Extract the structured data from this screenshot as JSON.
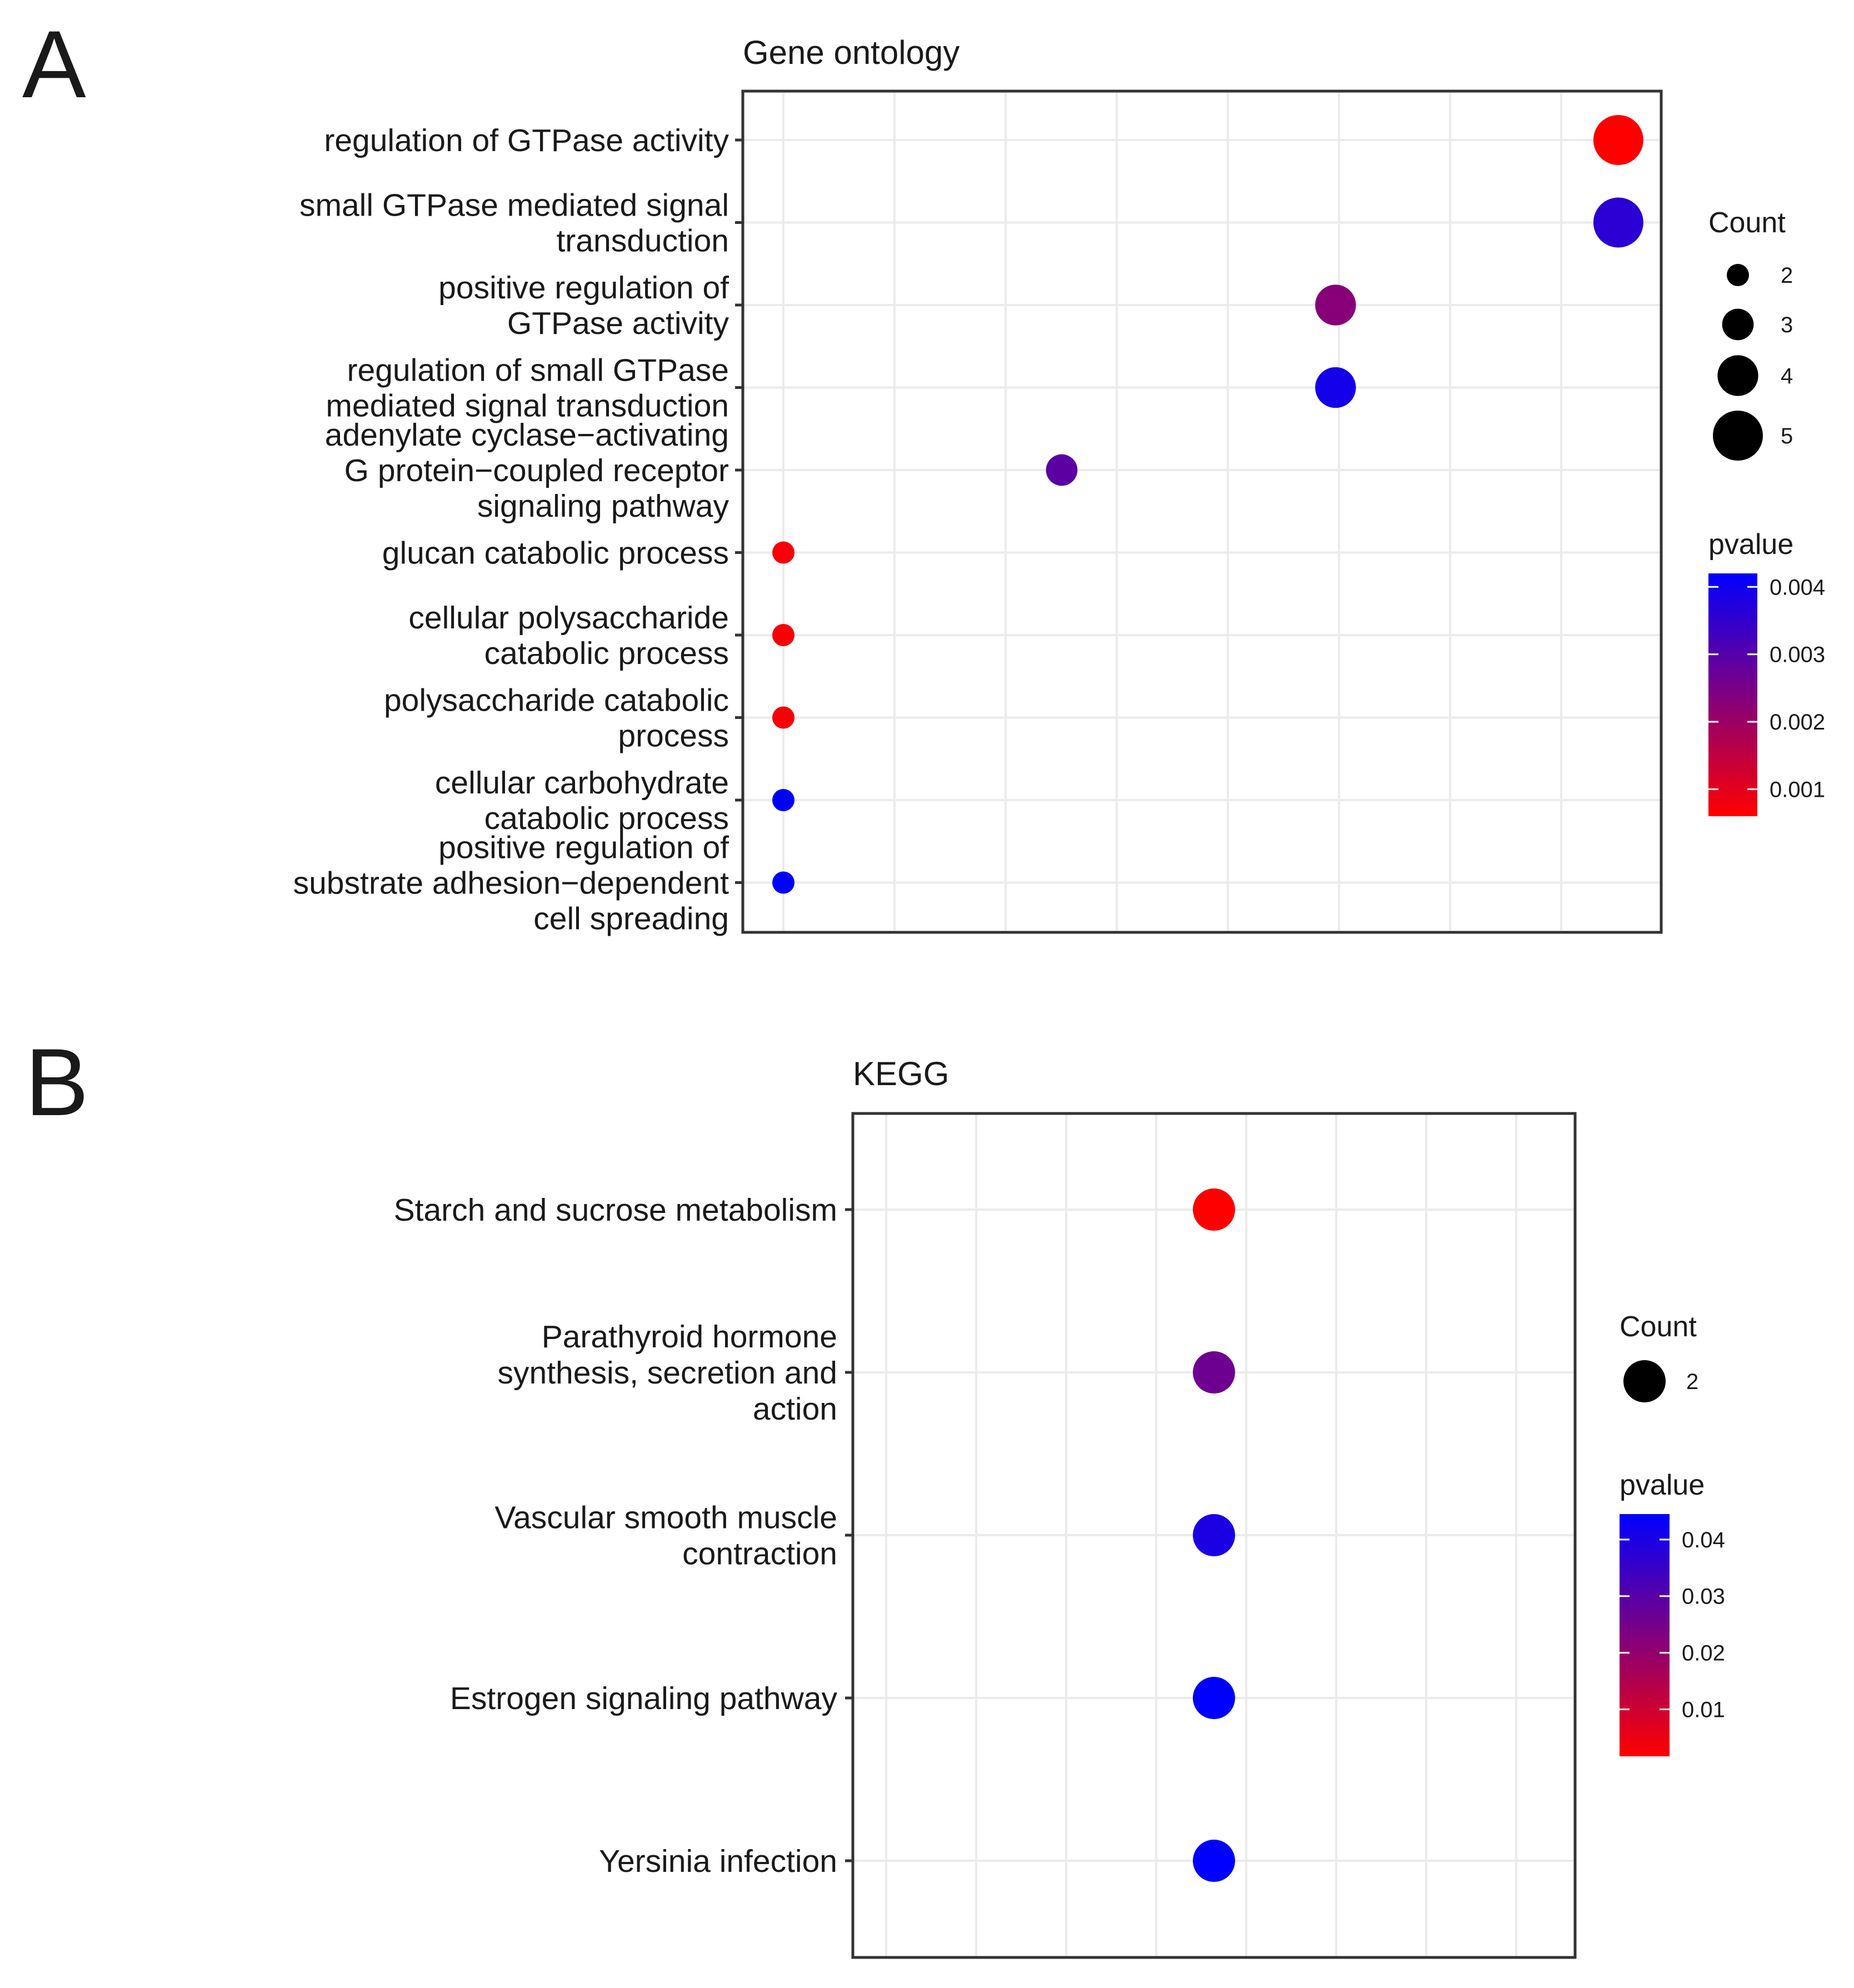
{
  "panel_a": {
    "letter": "A",
    "chart_data": {
      "type": "scatter",
      "title": "Gene ontology",
      "xlabel": "",
      "ylabel": "",
      "x_tick_labels": "none shown",
      "grid": true,
      "legend_placement": "right",
      "categories": [
        "regulation of GTPase activity",
        "small GTPase mediated signal transduction",
        "positive regulation of GTPase activity",
        "regulation of small GTPase mediated signal transduction",
        "adenylate cyclase−activating G protein−coupled receptor signaling pathway",
        "glucan catabolic process",
        "cellular polysaccharide catabolic process",
        "polysaccharide catabolic process",
        "cellular carbohydrate catabolic process",
        "positive regulation of substrate adhesion−dependent cell spreading"
      ],
      "category_lines": [
        [
          "regulation of GTPase activity"
        ],
        [
          "small GTPase mediated signal",
          "transduction"
        ],
        [
          "positive regulation of",
          "GTPase activity"
        ],
        [
          "regulation of small GTPase",
          "mediated signal transduction"
        ],
        [
          "adenylate cyclase−activating",
          "G protein−coupled receptor",
          "signaling pathway"
        ],
        [
          "glucan catabolic process"
        ],
        [
          "cellular polysaccharide",
          "catabolic process"
        ],
        [
          "polysaccharide catabolic",
          "process"
        ],
        [
          "cellular carbohydrate",
          "catabolic process"
        ],
        [
          "positive regulation of",
          "substrate adhesion−dependent",
          "cell spreading"
        ]
      ],
      "count": [
        5,
        5,
        4,
        4,
        3,
        2,
        2,
        2,
        2,
        2
      ],
      "pvalue": [
        0.0006,
        0.0036,
        0.0023,
        0.0039,
        0.0029,
        0.0007,
        0.0007,
        0.0007,
        0.0042,
        0.0042
      ],
      "x_position": [
        0.93,
        0.93,
        0.615,
        0.615,
        0.31,
        0.0,
        0.0,
        0.0,
        0.0,
        0.0
      ],
      "legend_count": {
        "title": "Count",
        "labels": [
          "2",
          "3",
          "4",
          "5"
        ],
        "values": [
          2,
          3,
          4,
          5
        ]
      },
      "legend_color": {
        "title": "pvalue",
        "labels": [
          "0.001",
          "0.002",
          "0.003",
          "0.004"
        ],
        "values": [
          0.001,
          0.002,
          0.003,
          0.004
        ],
        "range": [
          0.0006,
          0.0042
        ],
        "low_color": "#ff0000",
        "high_color": "#0000ff"
      }
    }
  },
  "panel_b": {
    "letter": "B",
    "chart_data": {
      "type": "scatter",
      "title": "KEGG",
      "xlabel": "",
      "ylabel": "",
      "x_tick_labels": "none shown",
      "grid": true,
      "legend_placement": "right",
      "categories": [
        "Starch and sucrose metabolism",
        "Parathyroid hormone synthesis, secretion and action",
        "Vascular smooth muscle contraction",
        "Estrogen signaling pathway",
        "Yersinia infection"
      ],
      "category_lines": [
        [
          "Starch and sucrose metabolism"
        ],
        [
          "Parathyroid hormone",
          "synthesis, secretion and",
          "action"
        ],
        [
          "Vascular smooth muscle",
          "contraction"
        ],
        [
          "Estrogen signaling pathway"
        ],
        [
          "Yersinia infection"
        ]
      ],
      "count": [
        2,
        2,
        2,
        2,
        2
      ],
      "pvalue": [
        0.0017,
        0.026,
        0.04,
        0.0445,
        0.0445
      ],
      "x_position": [
        0.5,
        0.5,
        0.5,
        0.5,
        0.5
      ],
      "legend_count": {
        "title": "Count",
        "labels": [
          "2"
        ],
        "values": [
          2
        ]
      },
      "legend_color": {
        "title": "pvalue",
        "labels": [
          "0.01",
          "0.02",
          "0.03",
          "0.04"
        ],
        "values": [
          0.01,
          0.02,
          0.03,
          0.04
        ],
        "range": [
          0.0017,
          0.0445
        ],
        "low_color": "#ff0000",
        "high_color": "#0000ff"
      }
    }
  }
}
